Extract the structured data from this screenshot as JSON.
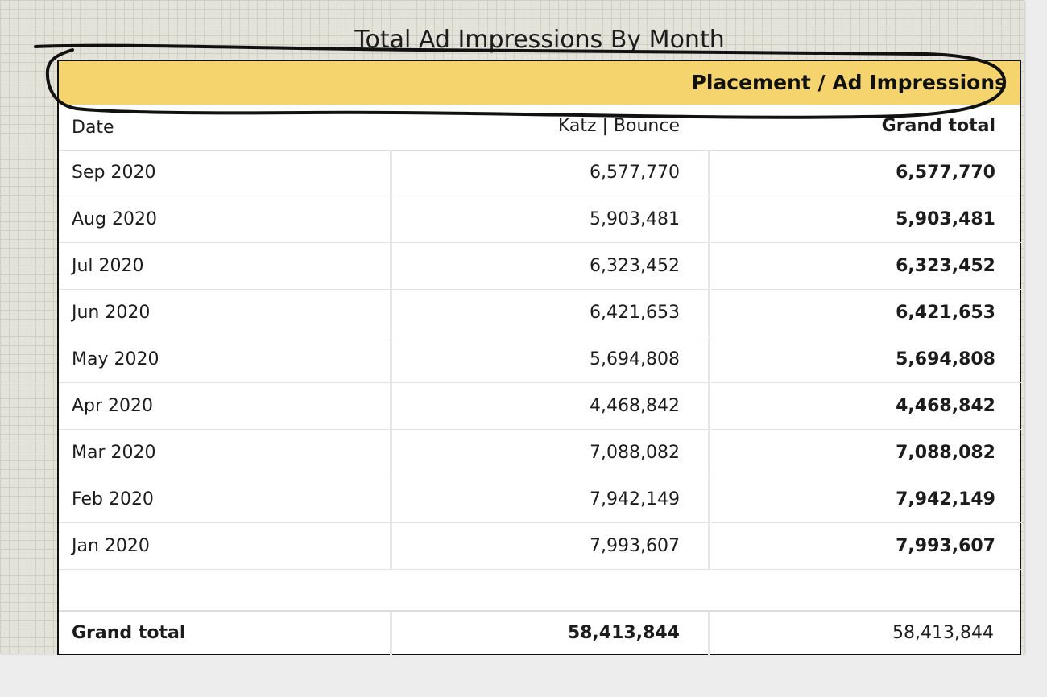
{
  "title": "Total Ad Impressions By Month",
  "header_band": {
    "label": "Placement / Ad Impressions",
    "color": "#f5d46d"
  },
  "columns": {
    "date": "Date",
    "placement": "Katz | Bounce",
    "grand_total": "Grand total"
  },
  "rows": [
    {
      "date": "Sep 2020",
      "placement": "6,577,770",
      "total": "6,577,770"
    },
    {
      "date": "Aug 2020",
      "placement": "5,903,481",
      "total": "5,903,481"
    },
    {
      "date": "Jul 2020",
      "placement": "6,323,452",
      "total": "6,323,452"
    },
    {
      "date": "Jun 2020",
      "placement": "6,421,653",
      "total": "6,421,653"
    },
    {
      "date": "May 2020",
      "placement": "5,694,808",
      "total": "5,694,808"
    },
    {
      "date": "Apr 2020",
      "placement": "4,468,842",
      "total": "4,468,842"
    },
    {
      "date": "Mar 2020",
      "placement": "7,088,082",
      "total": "7,088,082"
    },
    {
      "date": "Feb 2020",
      "placement": "7,942,149",
      "total": "7,942,149"
    },
    {
      "date": "Jan 2020",
      "placement": "7,993,607",
      "total": "7,993,607"
    }
  ],
  "footer": {
    "label": "Grand total",
    "placement": "58,413,844",
    "total": "58,413,844"
  }
}
